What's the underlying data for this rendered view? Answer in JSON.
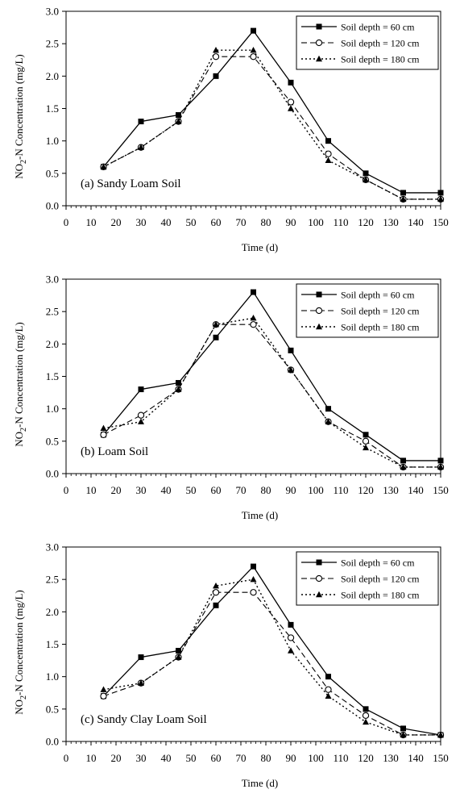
{
  "chart_data": [
    {
      "type": "line",
      "annotation": "(a) Sandy Loam Soil",
      "xlabel": "Time (d)",
      "ylabel": "NO2-N Concentration (mg/L)",
      "xlim": [
        0,
        150
      ],
      "ylim": [
        0,
        3.0
      ],
      "xticks": [
        0,
        10,
        20,
        30,
        40,
        50,
        60,
        70,
        80,
        90,
        100,
        110,
        120,
        130,
        140,
        150
      ],
      "yticks": [
        0.0,
        0.5,
        1.0,
        1.5,
        2.0,
        2.5,
        3.0
      ],
      "x": [
        15,
        30,
        45,
        60,
        75,
        90,
        105,
        120,
        135,
        150
      ],
      "legend_position": "top-right",
      "series": [
        {
          "name": "Soil depth = 60 cm",
          "values": [
            0.6,
            1.3,
            1.4,
            2.0,
            2.7,
            1.9,
            1.0,
            0.5,
            0.2,
            0.2
          ]
        },
        {
          "name": "Soil depth = 120 cm",
          "values": [
            0.6,
            0.9,
            1.3,
            2.3,
            2.3,
            1.6,
            0.8,
            0.4,
            0.1,
            0.1
          ]
        },
        {
          "name": "Soil depth = 180 cm",
          "values": [
            0.6,
            0.9,
            1.3,
            2.4,
            2.4,
            1.5,
            0.7,
            0.4,
            0.1,
            0.1
          ]
        }
      ]
    },
    {
      "type": "line",
      "annotation": "(b) Loam Soil",
      "xlabel": "Time (d)",
      "ylabel": "NO2-N Concentration (mg/L)",
      "xlim": [
        0,
        150
      ],
      "ylim": [
        0,
        3.0
      ],
      "xticks": [
        0,
        10,
        20,
        30,
        40,
        50,
        60,
        70,
        80,
        90,
        100,
        110,
        120,
        130,
        140,
        150
      ],
      "yticks": [
        0.0,
        0.5,
        1.0,
        1.5,
        2.0,
        2.5,
        3.0
      ],
      "x": [
        15,
        30,
        45,
        60,
        75,
        90,
        105,
        120,
        135,
        150
      ],
      "legend_position": "top-right",
      "series": [
        {
          "name": "Soil depth = 60 cm",
          "values": [
            0.6,
            1.3,
            1.4,
            2.1,
            2.8,
            1.9,
            1.0,
            0.6,
            0.2,
            0.2
          ]
        },
        {
          "name": "Soil depth = 120 cm",
          "values": [
            0.6,
            0.9,
            1.3,
            2.3,
            2.3,
            1.6,
            0.8,
            0.5,
            0.1,
            0.1
          ]
        },
        {
          "name": "Soil depth = 180 cm",
          "values": [
            0.7,
            0.8,
            1.3,
            2.3,
            2.4,
            1.6,
            0.8,
            0.4,
            0.1,
            0.1
          ]
        }
      ]
    },
    {
      "type": "line",
      "annotation": "(c) Sandy Clay Loam Soil",
      "xlabel": "Time (d)",
      "ylabel": "NO2-N Concentration (mg/L)",
      "xlim": [
        0,
        150
      ],
      "ylim": [
        0,
        3.0
      ],
      "xticks": [
        0,
        10,
        20,
        30,
        40,
        50,
        60,
        70,
        80,
        90,
        100,
        110,
        120,
        130,
        140,
        150
      ],
      "yticks": [
        0.0,
        0.5,
        1.0,
        1.5,
        2.0,
        2.5,
        3.0
      ],
      "x": [
        15,
        30,
        45,
        60,
        75,
        90,
        105,
        120,
        135,
        150
      ],
      "legend_position": "top-right",
      "series": [
        {
          "name": "Soil depth = 60 cm",
          "values": [
            0.7,
            1.3,
            1.4,
            2.1,
            2.7,
            1.8,
            1.0,
            0.5,
            0.2,
            0.1
          ]
        },
        {
          "name": "Soil depth = 120 cm",
          "values": [
            0.7,
            0.9,
            1.3,
            2.3,
            2.3,
            1.6,
            0.8,
            0.4,
            0.1,
            0.1
          ]
        },
        {
          "name": "Soil depth = 180 cm",
          "values": [
            0.8,
            0.9,
            1.3,
            2.4,
            2.5,
            1.4,
            0.7,
            0.3,
            0.1,
            0.1
          ]
        }
      ]
    }
  ]
}
